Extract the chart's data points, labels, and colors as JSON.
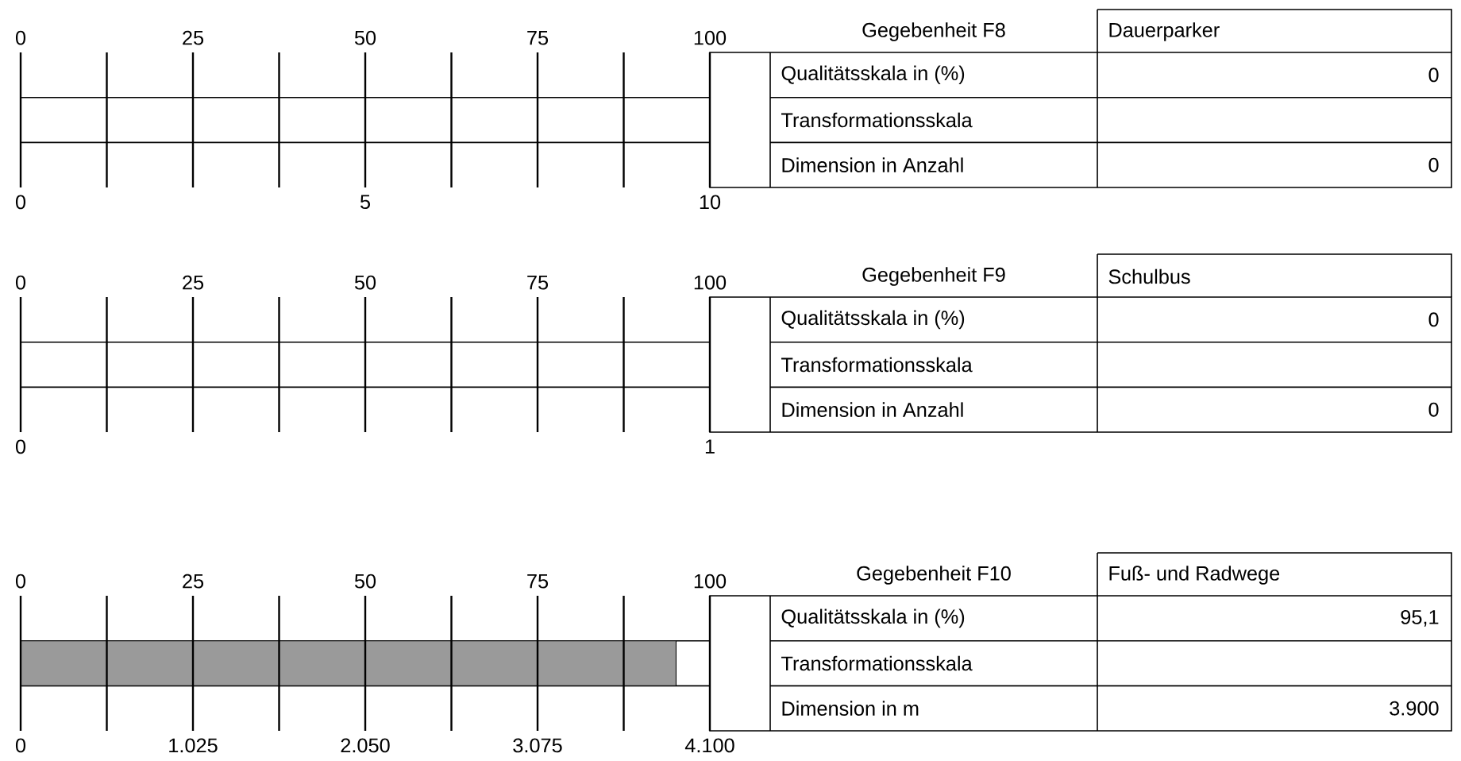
{
  "chart_data": [
    {
      "type": "bar",
      "orientation": "horizontal",
      "categories": [
        null
      ],
      "values": [
        0
      ],
      "color": "#9a9a9a",
      "grid": "x",
      "xlim": [
        0,
        100
      ],
      "xticks": [
        0,
        {
          "value": 12.5,
          "label": null
        },
        25,
        {
          "value": 37.5,
          "label": null
        },
        50,
        {
          "value": 62.5,
          "label": null
        },
        75,
        {
          "value": 87.5,
          "label": null
        },
        100
      ],
      "x2lim": [
        0,
        10
      ],
      "x2ticks": [
        0,
        5,
        10
      ],
      "bands": [
        {
          "axis": "x",
          "from": 0,
          "to": 100,
          "color": "#ffffff"
        }
      ],
      "annotations": [
        "Gegebenheit F8",
        "Dauerparker",
        "Qualitätsskala in (%)",
        "Transformationsskala",
        "Dimension in Anzahl",
        "0",
        "0"
      ]
    },
    {
      "type": "bar",
      "orientation": "horizontal",
      "categories": [
        null
      ],
      "values": [
        0
      ],
      "color": "#9a9a9a",
      "grid": "x",
      "xlim": [
        0,
        100
      ],
      "xticks": [
        0,
        {
          "value": 12.5,
          "label": null
        },
        25,
        {
          "value": 37.5,
          "label": null
        },
        50,
        {
          "value": 62.5,
          "label": null
        },
        75,
        {
          "value": 87.5,
          "label": null
        },
        100
      ],
      "x2lim": [
        0,
        1
      ],
      "x2ticks": [
        0,
        1
      ],
      "bands": [
        {
          "axis": "x",
          "from": 0,
          "to": 100,
          "color": "#ffffff"
        }
      ],
      "annotations": [
        "Gegebenheit F9",
        "Schulbus",
        "Qualitätsskala in (%)",
        "Transformationsskala",
        "Dimension in Anzahl",
        "0",
        "0"
      ]
    },
    {
      "type": "bar",
      "orientation": "horizontal",
      "categories": [
        null
      ],
      "values": [
        95.1
      ],
      "color": "#9a9a9a",
      "grid": "x",
      "xlim": [
        0,
        100
      ],
      "xticks": [
        0,
        {
          "value": 12.5,
          "label": null
        },
        25,
        {
          "value": 37.5,
          "label": null
        },
        50,
        {
          "value": 62.5,
          "label": null
        },
        75,
        {
          "value": 87.5,
          "label": null
        },
        100
      ],
      "bands": [
        {
          "axis": "x",
          "from": 0,
          "to": 100,
          "color": "#ffffff"
        }
      ],
      "x2lim": [
        0,
        4100
      ],
      "x2ticks": [
        0,
        {
          "value": 1025,
          "label": "1.025"
        },
        {
          "value": 2050,
          "label": "2.050"
        },
        {
          "value": 3075,
          "label": "3.075"
        },
        {
          "value": 4100,
          "label": "4.100"
        }
      ],
      "annotations": [
        "Gegebenheit  F10",
        "Fuß- und Radwege",
        "Qualitätsskala in (%)",
        "Transformationsskala",
        "Dimension in m",
        "95,1",
        "3.900"
      ]
    }
  ]
}
